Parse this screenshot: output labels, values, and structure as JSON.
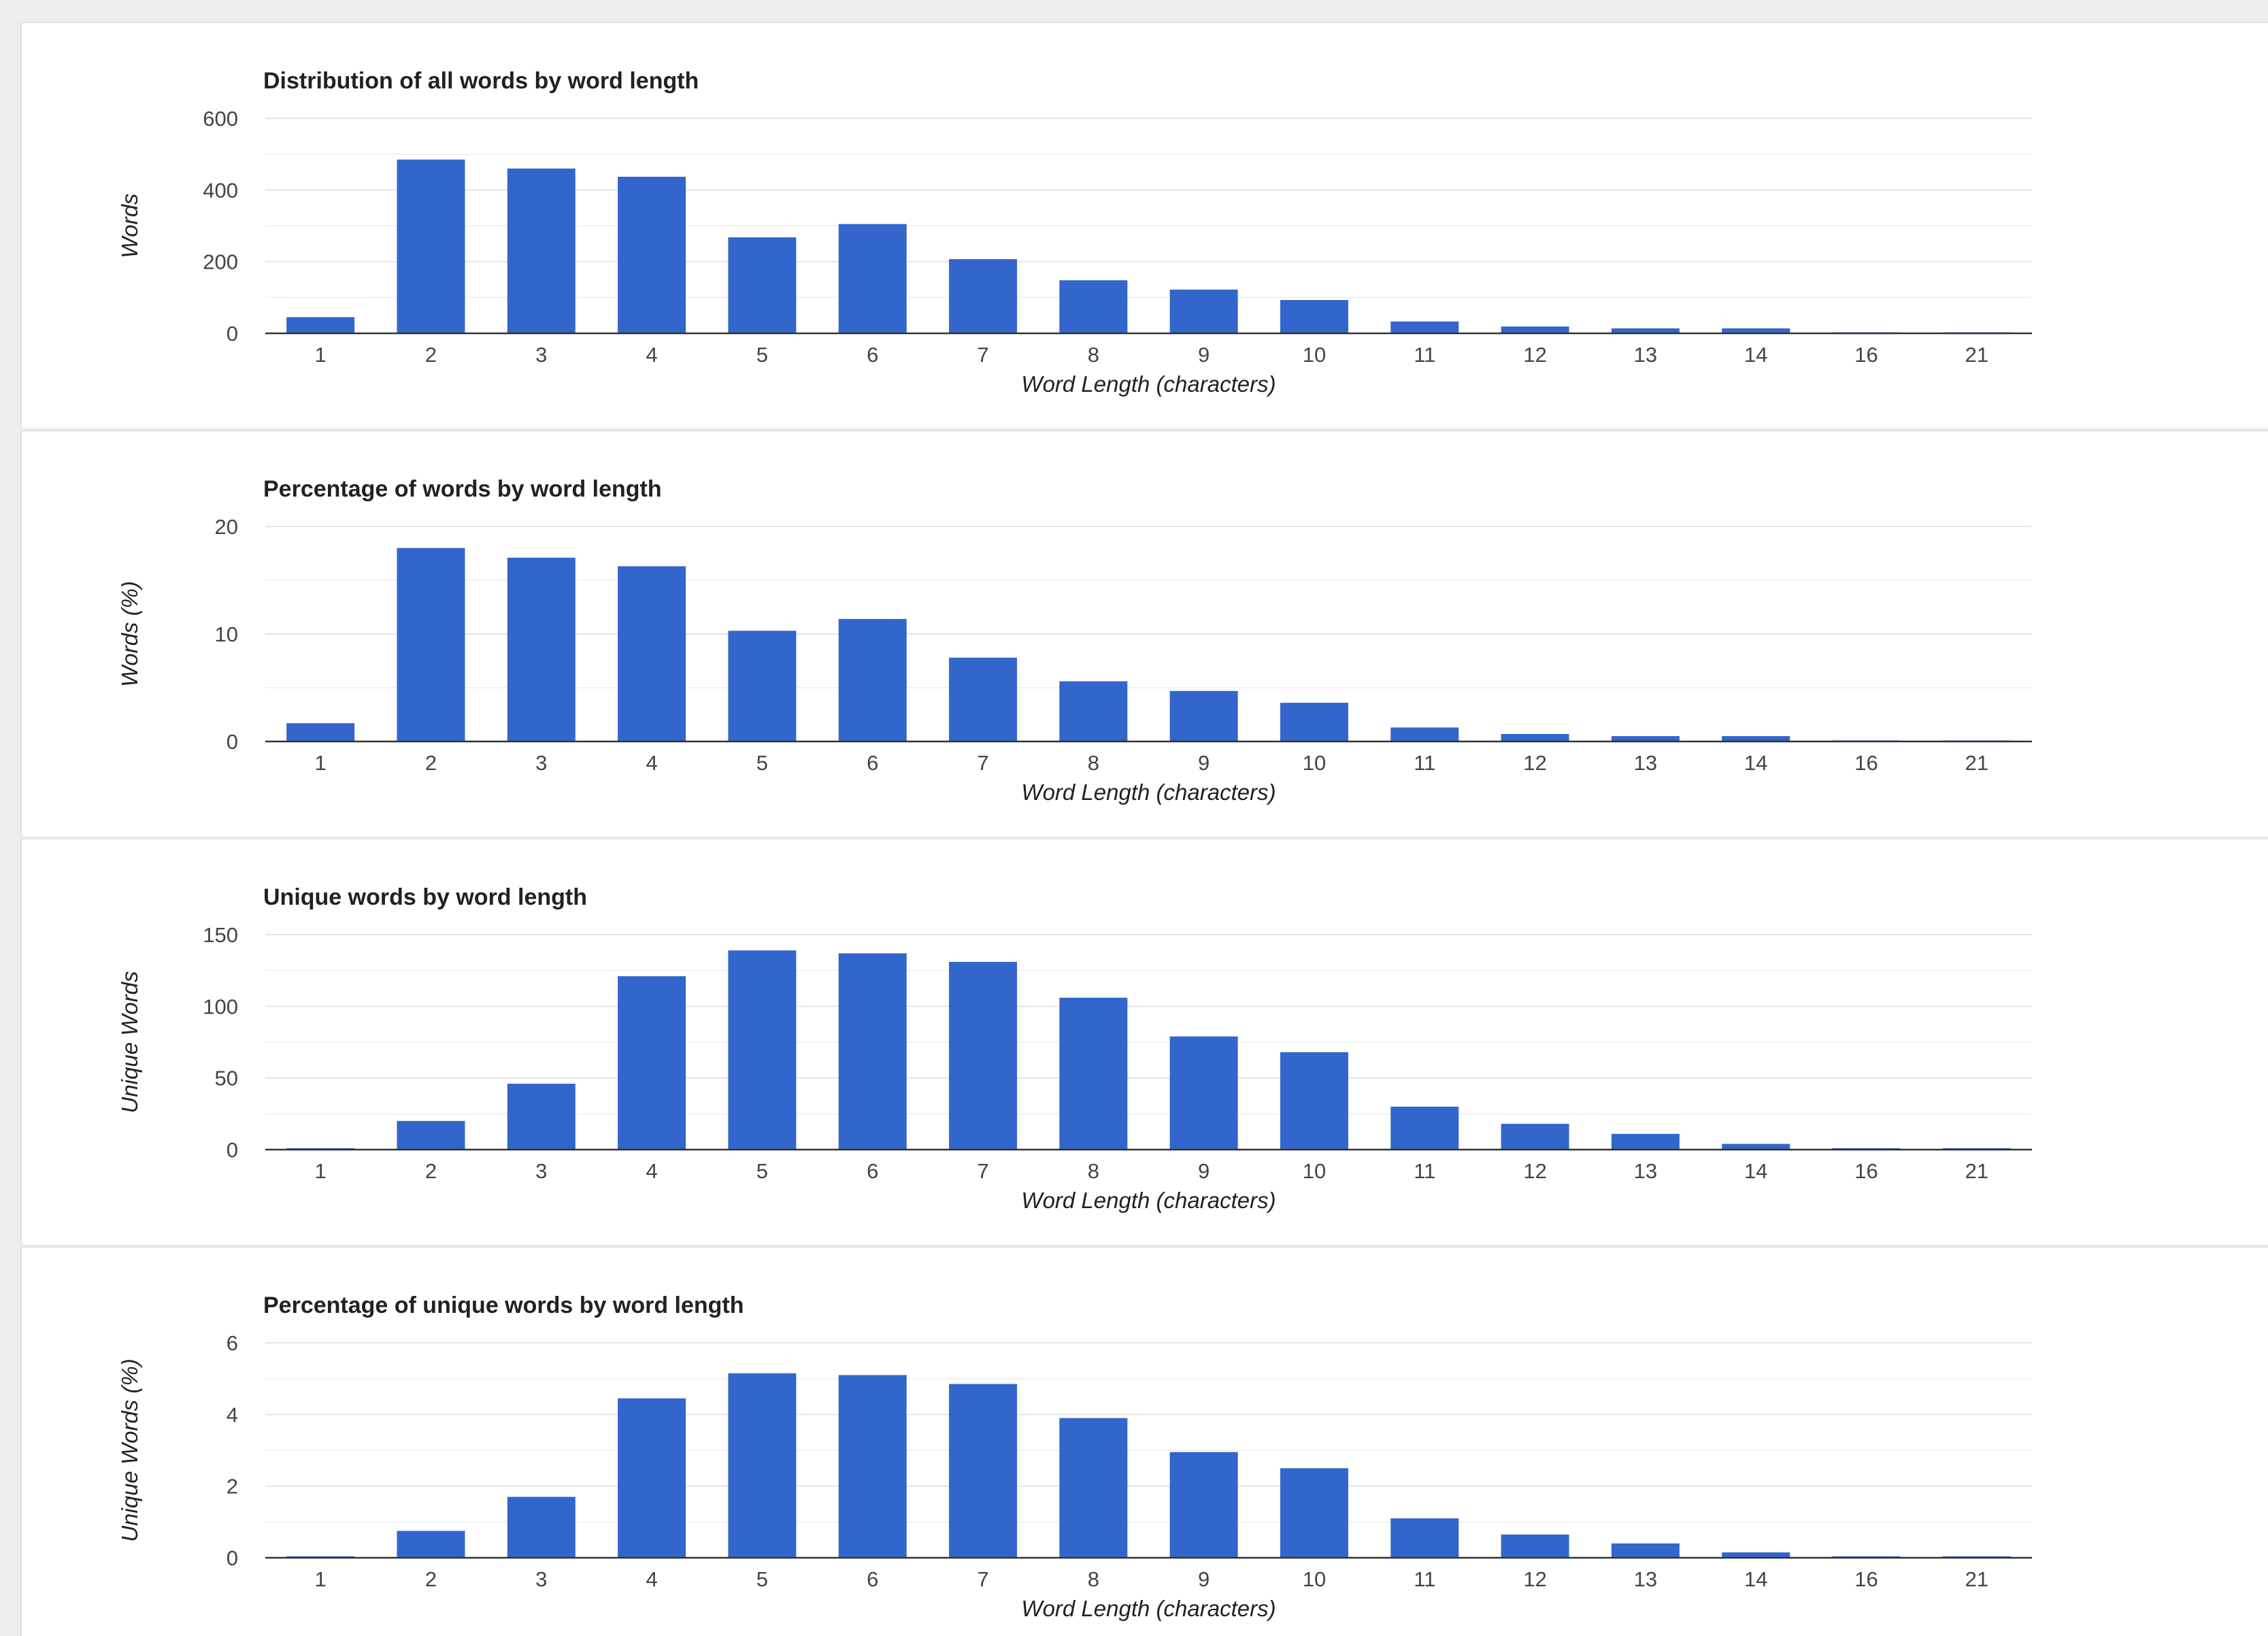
{
  "colors": {
    "bar": "#3366cc",
    "text": "#222222",
    "grid": "#e4e4e4",
    "background": "#ffffff"
  },
  "chart_data": [
    {
      "type": "bar",
      "title": "Distribution of all words by word length",
      "xlabel": "Word Length (characters)",
      "ylabel": "Words",
      "categories": [
        "1",
        "2",
        "3",
        "4",
        "5",
        "6",
        "7",
        "8",
        "9",
        "10",
        "11",
        "12",
        "13",
        "14",
        "16",
        "21"
      ],
      "values": [
        45,
        485,
        460,
        437,
        268,
        305,
        207,
        148,
        122,
        93,
        33,
        19,
        14,
        14,
        2,
        1
      ],
      "ylim": [
        0,
        600
      ],
      "yticks": [
        "0",
        "200",
        "400",
        "600"
      ],
      "grid": true
    },
    {
      "type": "bar",
      "title": "Percentage of words by word length",
      "xlabel": "Word Length (characters)",
      "ylabel": "Words (%)",
      "categories": [
        "1",
        "2",
        "3",
        "4",
        "5",
        "6",
        "7",
        "8",
        "9",
        "10",
        "11",
        "12",
        "13",
        "14",
        "16",
        "21"
      ],
      "values": [
        1.7,
        18.0,
        17.1,
        16.3,
        10.3,
        11.4,
        7.8,
        5.6,
        4.7,
        3.6,
        1.3,
        0.7,
        0.5,
        0.5,
        0.1,
        0.05
      ],
      "ylim": [
        0,
        20
      ],
      "yticks": [
        "0",
        "10",
        "20"
      ],
      "grid": true
    },
    {
      "type": "bar",
      "title": "Unique words by word length",
      "xlabel": "Word Length (characters)",
      "ylabel": "Unique Words",
      "categories": [
        "1",
        "2",
        "3",
        "4",
        "5",
        "6",
        "7",
        "8",
        "9",
        "10",
        "11",
        "12",
        "13",
        "14",
        "16",
        "21"
      ],
      "values": [
        1,
        20,
        46,
        121,
        139,
        137,
        131,
        106,
        79,
        68,
        30,
        18,
        11,
        4,
        1,
        1
      ],
      "ylim": [
        0,
        150
      ],
      "yticks": [
        "0",
        "50",
        "100",
        "150"
      ],
      "grid": true
    },
    {
      "type": "bar",
      "title": "Percentage of unique words by word length",
      "xlabel": "Word Length (characters)",
      "ylabel": "Unique Words (%)",
      "categories": [
        "1",
        "2",
        "3",
        "4",
        "5",
        "6",
        "7",
        "8",
        "9",
        "10",
        "11",
        "12",
        "13",
        "14",
        "16",
        "21"
      ],
      "values": [
        0.04,
        0.75,
        1.7,
        4.45,
        5.15,
        5.1,
        4.85,
        3.9,
        2.95,
        2.5,
        1.1,
        0.65,
        0.4,
        0.15,
        0.04,
        0.04
      ],
      "ylim": [
        0,
        6
      ],
      "yticks": [
        "0",
        "2",
        "4",
        "6"
      ],
      "grid": true
    }
  ]
}
